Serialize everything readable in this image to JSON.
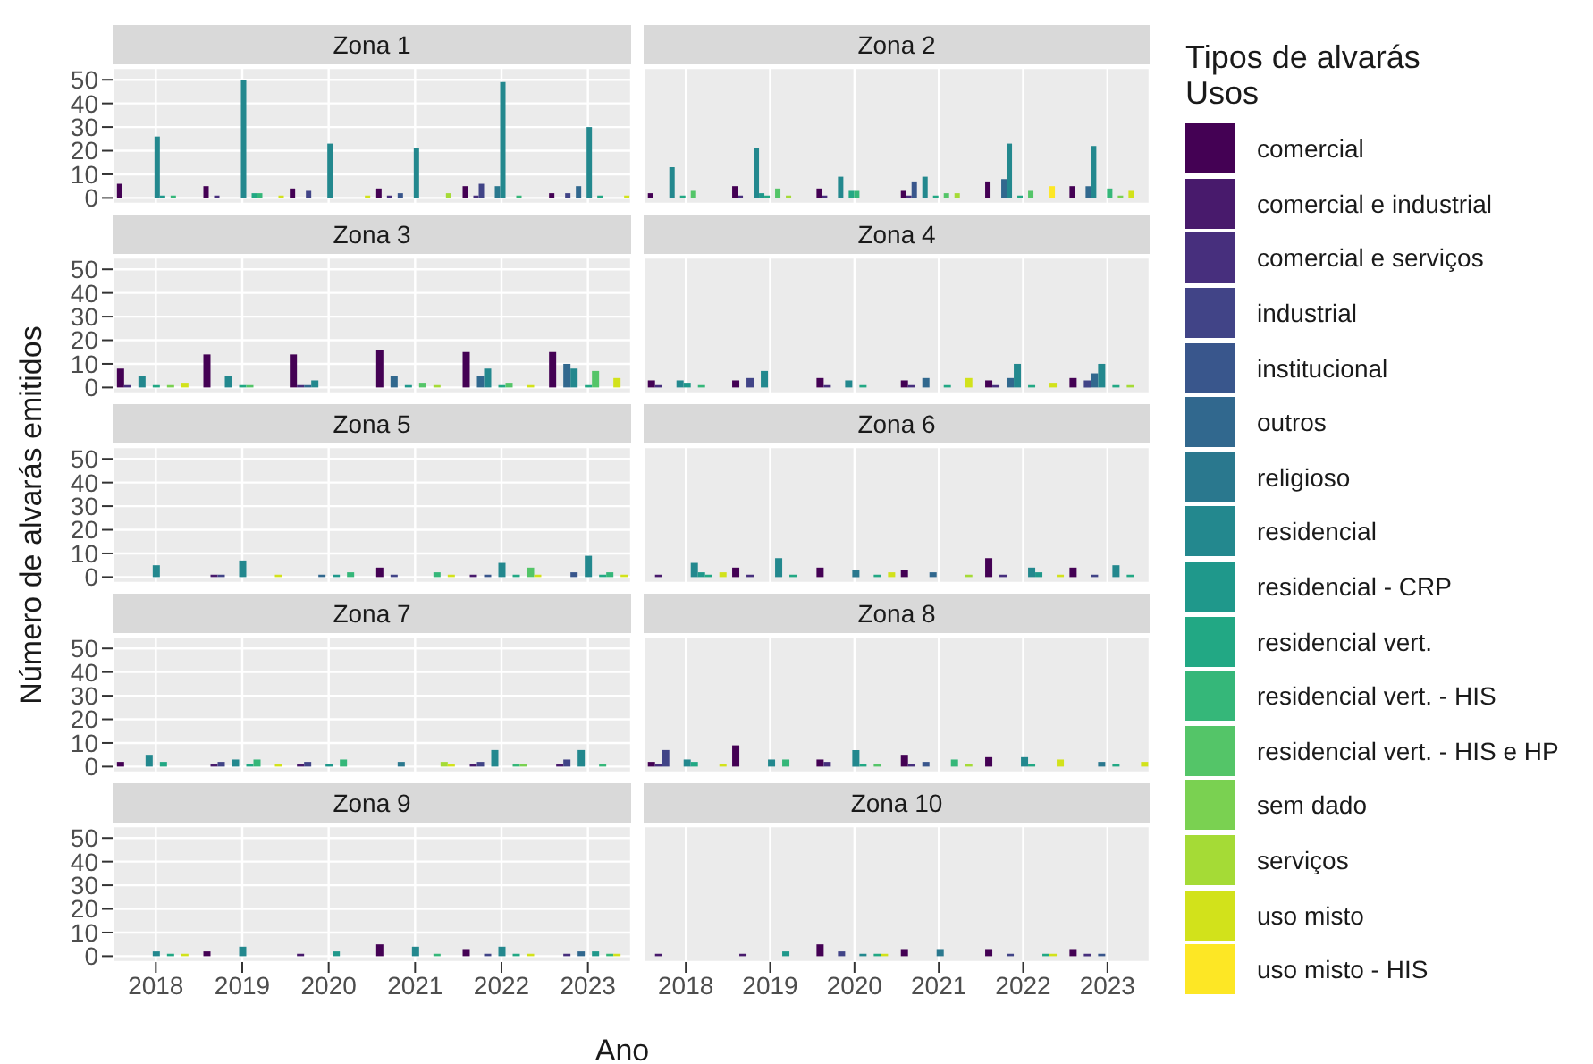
{
  "chart_data": [
    {
      "type": "bar",
      "title": "Zona 1",
      "categories": [
        "2018",
        "2019",
        "2020",
        "2021",
        "2022",
        "2023"
      ],
      "ylim": [
        -2.5,
        55
      ],
      "yticks": [
        0,
        10,
        20,
        30,
        40,
        50
      ],
      "grid": true,
      "tick_labels": "y",
      "legend": "right",
      "legend_title": "Tipos de alvarás\nUsos",
      "series": [
        {
          "name": "comercial",
          "color": "#440154",
          "values": [
            6,
            5,
            4,
            4,
            5,
            2
          ]
        },
        {
          "name": "comercial e industrial",
          "color": "#481a6c",
          "values": [
            null,
            null,
            null,
            null,
            null,
            null
          ]
        },
        {
          "name": "comercial e serviços",
          "color": "#472f7d",
          "values": [
            null,
            1,
            null,
            1,
            1,
            null
          ]
        },
        {
          "name": "industrial",
          "color": "#414487",
          "values": [
            null,
            null,
            3,
            null,
            6,
            2
          ]
        },
        {
          "name": "institucional",
          "color": "#39568c",
          "values": [
            null,
            null,
            null,
            2,
            null,
            null
          ]
        },
        {
          "name": "outros",
          "color": "#31688e",
          "values": [
            null,
            null,
            null,
            null,
            null,
            5
          ]
        },
        {
          "name": "religioso",
          "color": "#2a788e",
          "values": [
            null,
            null,
            null,
            null,
            5,
            null
          ]
        },
        {
          "name": "residencial",
          "color": "#23888e",
          "values": [
            26,
            50,
            23,
            21,
            49,
            30
          ]
        },
        {
          "name": "residencial - CRP",
          "color": "#1f988b",
          "values": [
            1,
            null,
            null,
            null,
            null,
            null
          ]
        },
        {
          "name": "residencial vert.",
          "color": "#22a884",
          "values": [
            null,
            2,
            null,
            null,
            null,
            1
          ]
        },
        {
          "name": "residencial vert. - HIS",
          "color": "#35b779",
          "values": [
            1,
            2,
            null,
            null,
            1,
            null
          ]
        },
        {
          "name": "residencial vert. - HIS e HP",
          "color": "#54c568",
          "values": [
            null,
            null,
            null,
            null,
            null,
            null
          ]
        },
        {
          "name": "sem dado",
          "color": "#7ad151",
          "values": [
            null,
            null,
            null,
            null,
            null,
            null
          ]
        },
        {
          "name": "serviços",
          "color": "#a5db36",
          "values": [
            null,
            null,
            null,
            2,
            null,
            null
          ]
        },
        {
          "name": "uso misto",
          "color": "#d2e21b",
          "values": [
            null,
            1,
            1,
            null,
            null,
            1
          ]
        },
        {
          "name": "uso misto - HIS",
          "color": "#fde725",
          "values": [
            null,
            null,
            null,
            null,
            null,
            null
          ]
        }
      ]
    },
    {
      "type": "bar",
      "title": "Zona 2",
      "categories": [
        "2018",
        "2019",
        "2020",
        "2021",
        "2022",
        "2023"
      ],
      "ylim": [
        -2.5,
        55
      ],
      "yticks": [
        0,
        10,
        20,
        30,
        40,
        50
      ],
      "grid": true,
      "tick_labels": false,
      "series": [
        {
          "color": "#440154",
          "values": [
            2,
            5,
            4,
            3,
            7,
            5
          ]
        },
        {
          "color": "#472f7d",
          "values": [
            null,
            1,
            1,
            1,
            null,
            null
          ]
        },
        {
          "color": "#39568c",
          "values": [
            null,
            null,
            null,
            7,
            null,
            null
          ]
        },
        {
          "color": "#31688e",
          "values": [
            null,
            null,
            null,
            null,
            8,
            5
          ]
        },
        {
          "color": "#23888e",
          "values": [
            13,
            21,
            9,
            9,
            23,
            22
          ]
        },
        {
          "color": "#1f988b",
          "values": [
            null,
            2,
            null,
            null,
            null,
            null
          ]
        },
        {
          "color": "#22a884",
          "values": [
            1,
            1,
            3,
            1,
            1,
            null
          ]
        },
        {
          "color": "#35b779",
          "values": [
            null,
            null,
            3,
            null,
            null,
            4
          ]
        },
        {
          "color": "#54c568",
          "values": [
            3,
            4,
            null,
            2,
            3,
            null
          ]
        },
        {
          "color": "#7ad151",
          "values": [
            null,
            null,
            null,
            null,
            null,
            1
          ]
        },
        {
          "color": "#a5db36",
          "values": [
            null,
            1,
            null,
            2,
            null,
            null
          ]
        },
        {
          "color": "#d2e21b",
          "values": [
            null,
            null,
            null,
            null,
            null,
            3
          ]
        },
        {
          "color": "#fde725",
          "values": [
            null,
            null,
            null,
            null,
            5,
            null
          ]
        }
      ]
    },
    {
      "type": "bar",
      "title": "Zona 3",
      "categories": [
        "2018",
        "2019",
        "2020",
        "2021",
        "2022",
        "2023"
      ],
      "ylim": [
        -2.5,
        55
      ],
      "yticks": [
        0,
        10,
        20,
        30,
        40,
        50
      ],
      "grid": true,
      "tick_labels": "y",
      "series": [
        {
          "color": "#440154",
          "values": [
            8,
            14,
            14,
            16,
            15,
            15
          ]
        },
        {
          "color": "#472f7d",
          "values": [
            1,
            null,
            1,
            null,
            null,
            null
          ]
        },
        {
          "color": "#31688e",
          "values": [
            null,
            null,
            1,
            5,
            5,
            10
          ]
        },
        {
          "color": "#23888e",
          "values": [
            5,
            5,
            3,
            null,
            8,
            8
          ]
        },
        {
          "color": "#1f988b",
          "values": [
            null,
            null,
            null,
            1,
            null,
            null
          ]
        },
        {
          "color": "#22a884",
          "values": [
            1,
            1,
            null,
            null,
            1,
            1
          ]
        },
        {
          "color": "#54c568",
          "values": [
            null,
            1,
            null,
            2,
            2,
            7
          ]
        },
        {
          "color": "#7ad151",
          "values": [
            1,
            null,
            null,
            null,
            null,
            null
          ]
        },
        {
          "color": "#a5db36",
          "values": [
            null,
            null,
            null,
            1,
            null,
            null
          ]
        },
        {
          "color": "#d2e21b",
          "values": [
            2,
            null,
            null,
            null,
            1,
            4
          ]
        }
      ]
    },
    {
      "type": "bar",
      "title": "Zona 4",
      "categories": [
        "2018",
        "2019",
        "2020",
        "2021",
        "2022",
        "2023"
      ],
      "ylim": [
        -2.5,
        55
      ],
      "yticks": [
        0,
        10,
        20,
        30,
        40,
        50
      ],
      "grid": true,
      "tick_labels": false,
      "series": [
        {
          "color": "#440154",
          "values": [
            3,
            3,
            4,
            3,
            3,
            4
          ]
        },
        {
          "color": "#472f7d",
          "values": [
            1,
            null,
            1,
            1,
            1,
            null
          ]
        },
        {
          "color": "#414487",
          "values": [
            null,
            4,
            null,
            null,
            null,
            3
          ]
        },
        {
          "color": "#31688e",
          "values": [
            null,
            null,
            null,
            4,
            4,
            6
          ]
        },
        {
          "color": "#23888e",
          "values": [
            3,
            7,
            3,
            null,
            10,
            10
          ]
        },
        {
          "color": "#1f988b",
          "values": [
            2,
            null,
            null,
            null,
            null,
            null
          ]
        },
        {
          "color": "#22a884",
          "values": [
            null,
            null,
            1,
            1,
            1,
            1
          ]
        },
        {
          "color": "#35b779",
          "values": [
            1,
            null,
            null,
            null,
            null,
            null
          ]
        },
        {
          "color": "#a5db36",
          "values": [
            null,
            null,
            null,
            null,
            null,
            1
          ]
        },
        {
          "color": "#d2e21b",
          "values": [
            null,
            null,
            null,
            4,
            2,
            null
          ]
        }
      ]
    },
    {
      "type": "bar",
      "title": "Zona 5",
      "categories": [
        "2018",
        "2019",
        "2020",
        "2021",
        "2022",
        "2023"
      ],
      "ylim": [
        -2.5,
        55
      ],
      "yticks": [
        0,
        10,
        20,
        30,
        40,
        50
      ],
      "grid": true,
      "tick_labels": "y",
      "ylabel": "Número de alvarás emitidos",
      "series": [
        {
          "color": "#440154",
          "values": [
            null,
            null,
            null,
            4,
            null,
            null
          ]
        },
        {
          "color": "#481a6c",
          "values": [
            null,
            1,
            null,
            null,
            1,
            null
          ]
        },
        {
          "color": "#414487",
          "values": [
            null,
            1,
            null,
            1,
            null,
            null
          ]
        },
        {
          "color": "#39568c",
          "values": [
            null,
            null,
            null,
            null,
            1,
            2
          ]
        },
        {
          "color": "#31688e",
          "values": [
            null,
            null,
            1,
            null,
            null,
            null
          ]
        },
        {
          "color": "#23888e",
          "values": [
            5,
            7,
            null,
            null,
            6,
            9
          ]
        },
        {
          "color": "#1f988b",
          "values": [
            null,
            null,
            1,
            null,
            null,
            null
          ]
        },
        {
          "color": "#22a884",
          "values": [
            null,
            null,
            null,
            null,
            1,
            1
          ]
        },
        {
          "color": "#35b779",
          "values": [
            null,
            null,
            2,
            2,
            null,
            2
          ]
        },
        {
          "color": "#54c568",
          "values": [
            null,
            null,
            null,
            null,
            4,
            null
          ]
        },
        {
          "color": "#d2e21b",
          "values": [
            null,
            1,
            null,
            1,
            1,
            1
          ]
        }
      ]
    },
    {
      "type": "bar",
      "title": "Zona 6",
      "categories": [
        "2018",
        "2019",
        "2020",
        "2021",
        "2022",
        "2023"
      ],
      "ylim": [
        -2.5,
        55
      ],
      "yticks": [
        0,
        10,
        20,
        30,
        40,
        50
      ],
      "grid": true,
      "tick_labels": false,
      "series": [
        {
          "color": "#440154",
          "values": [
            null,
            4,
            4,
            3,
            8,
            4
          ]
        },
        {
          "color": "#481a6c",
          "values": [
            1,
            null,
            null,
            null,
            null,
            null
          ]
        },
        {
          "color": "#472f7d",
          "values": [
            null,
            1,
            null,
            null,
            1,
            null
          ]
        },
        {
          "color": "#414487",
          "values": [
            null,
            null,
            null,
            null,
            null,
            1
          ]
        },
        {
          "color": "#31688e",
          "values": [
            null,
            null,
            null,
            2,
            null,
            null
          ]
        },
        {
          "color": "#2a788e",
          "values": [
            null,
            null,
            3,
            null,
            null,
            null
          ]
        },
        {
          "color": "#23888e",
          "values": [
            6,
            8,
            null,
            null,
            4,
            5
          ]
        },
        {
          "color": "#1f988b",
          "values": [
            2,
            null,
            null,
            null,
            2,
            null
          ]
        },
        {
          "color": "#22a884",
          "values": [
            1,
            1,
            1,
            null,
            null,
            1
          ]
        },
        {
          "color": "#a5db36",
          "values": [
            null,
            null,
            null,
            1,
            null,
            null
          ]
        },
        {
          "color": "#d2e21b",
          "values": [
            2,
            null,
            2,
            null,
            1,
            null
          ]
        }
      ]
    },
    {
      "type": "bar",
      "title": "Zona 7",
      "categories": [
        "2018",
        "2019",
        "2020",
        "2021",
        "2022",
        "2023"
      ],
      "ylim": [
        -2.5,
        55
      ],
      "yticks": [
        0,
        10,
        20,
        30,
        40,
        50
      ],
      "grid": true,
      "tick_labels": "y",
      "series": [
        {
          "color": "#440154",
          "values": [
            2,
            null,
            null,
            null,
            null,
            null
          ]
        },
        {
          "color": "#481a6c",
          "values": [
            null,
            1,
            1,
            null,
            1,
            1
          ]
        },
        {
          "color": "#414487",
          "values": [
            null,
            2,
            2,
            null,
            2,
            3
          ]
        },
        {
          "color": "#2a788e",
          "values": [
            null,
            null,
            null,
            2,
            null,
            null
          ]
        },
        {
          "color": "#23888e",
          "values": [
            5,
            3,
            null,
            null,
            7,
            7
          ]
        },
        {
          "color": "#1f988b",
          "values": [
            null,
            null,
            1,
            null,
            null,
            null
          ]
        },
        {
          "color": "#22a884",
          "values": [
            2,
            1,
            null,
            null,
            null,
            null
          ]
        },
        {
          "color": "#35b779",
          "values": [
            null,
            3,
            3,
            null,
            1,
            1
          ]
        },
        {
          "color": "#7ad151",
          "values": [
            null,
            null,
            null,
            null,
            1,
            null
          ]
        },
        {
          "color": "#a5db36",
          "values": [
            null,
            null,
            null,
            2,
            null,
            null
          ]
        },
        {
          "color": "#d2e21b",
          "values": [
            null,
            1,
            null,
            1,
            null,
            null
          ]
        }
      ]
    },
    {
      "type": "bar",
      "title": "Zona 8",
      "categories": [
        "2018",
        "2019",
        "2020",
        "2021",
        "2022",
        "2023"
      ],
      "ylim": [
        -2.5,
        55
      ],
      "yticks": [
        0,
        10,
        20,
        30,
        40,
        50
      ],
      "grid": true,
      "tick_labels": false,
      "series": [
        {
          "color": "#440154",
          "values": [
            2,
            9,
            3,
            5,
            4,
            null
          ]
        },
        {
          "color": "#472f7d",
          "values": [
            1,
            null,
            2,
            1,
            null,
            null
          ]
        },
        {
          "color": "#414487",
          "values": [
            7,
            null,
            null,
            null,
            null,
            null
          ]
        },
        {
          "color": "#39568c",
          "values": [
            null,
            null,
            null,
            2,
            null,
            null
          ]
        },
        {
          "color": "#2a788e",
          "values": [
            null,
            null,
            null,
            null,
            null,
            2
          ]
        },
        {
          "color": "#23888e",
          "values": [
            3,
            3,
            7,
            null,
            4,
            null
          ]
        },
        {
          "color": "#22a884",
          "values": [
            2,
            null,
            1,
            null,
            1,
            1
          ]
        },
        {
          "color": "#35b779",
          "values": [
            null,
            3,
            null,
            3,
            null,
            null
          ]
        },
        {
          "color": "#54c568",
          "values": [
            null,
            null,
            1,
            null,
            null,
            null
          ]
        },
        {
          "color": "#a5db36",
          "values": [
            null,
            null,
            null,
            1,
            null,
            null
          ]
        },
        {
          "color": "#d2e21b",
          "values": [
            1,
            null,
            null,
            null,
            3,
            2
          ]
        }
      ]
    },
    {
      "type": "bar",
      "title": "Zona 9",
      "categories": [
        "2018",
        "2019",
        "2020",
        "2021",
        "2022",
        "2023"
      ],
      "ylim": [
        -2.5,
        55
      ],
      "yticks": [
        0,
        10,
        20,
        30,
        40,
        50
      ],
      "grid": true,
      "xlabel": "Ano",
      "series": [
        {
          "color": "#440154",
          "values": [
            null,
            2,
            null,
            5,
            3,
            null
          ]
        },
        {
          "color": "#481a6c",
          "values": [
            null,
            null,
            1,
            null,
            null,
            null
          ]
        },
        {
          "color": "#472f7d",
          "values": [
            null,
            null,
            null,
            null,
            null,
            1
          ]
        },
        {
          "color": "#414487",
          "values": [
            null,
            null,
            null,
            null,
            1,
            null
          ]
        },
        {
          "color": "#31688e",
          "values": [
            null,
            null,
            null,
            null,
            null,
            2
          ]
        },
        {
          "color": "#23888e",
          "values": [
            2,
            4,
            null,
            4,
            4,
            null
          ]
        },
        {
          "color": "#1f988b",
          "values": [
            null,
            null,
            2,
            null,
            null,
            2
          ]
        },
        {
          "color": "#22a884",
          "values": [
            1,
            null,
            null,
            null,
            1,
            null
          ]
        },
        {
          "color": "#35b779",
          "values": [
            null,
            null,
            null,
            1,
            null,
            1
          ]
        },
        {
          "color": "#d2e21b",
          "values": [
            1,
            null,
            null,
            null,
            1,
            1
          ]
        }
      ]
    },
    {
      "type": "bar",
      "title": "Zona 10",
      "categories": [
        "2018",
        "2019",
        "2020",
        "2021",
        "2022",
        "2023"
      ],
      "ylim": [
        -2.5,
        55
      ],
      "yticks": [
        0,
        10,
        20,
        30,
        40,
        50
      ],
      "grid": true,
      "tick_labels": "x",
      "series": [
        {
          "color": "#440154",
          "values": [
            null,
            null,
            5,
            3,
            3,
            3
          ]
        },
        {
          "color": "#481a6c",
          "values": [
            1,
            1,
            null,
            null,
            null,
            null
          ]
        },
        {
          "color": "#472f7d",
          "values": [
            null,
            null,
            null,
            null,
            null,
            1
          ]
        },
        {
          "color": "#414487",
          "values": [
            null,
            null,
            2,
            null,
            1,
            null
          ]
        },
        {
          "color": "#39568c",
          "values": [
            null,
            null,
            null,
            null,
            null,
            1
          ]
        },
        {
          "color": "#2a788e",
          "values": [
            null,
            null,
            null,
            3,
            null,
            null
          ]
        },
        {
          "color": "#23888e",
          "values": [
            null,
            null,
            1,
            null,
            null,
            null
          ]
        },
        {
          "color": "#1f988b",
          "values": [
            null,
            2,
            null,
            null,
            null,
            null
          ]
        },
        {
          "color": "#22a884",
          "values": [
            null,
            null,
            1,
            null,
            1,
            null
          ]
        },
        {
          "color": "#d2e21b",
          "values": [
            null,
            null,
            1,
            null,
            1,
            null
          ]
        }
      ]
    }
  ]
}
